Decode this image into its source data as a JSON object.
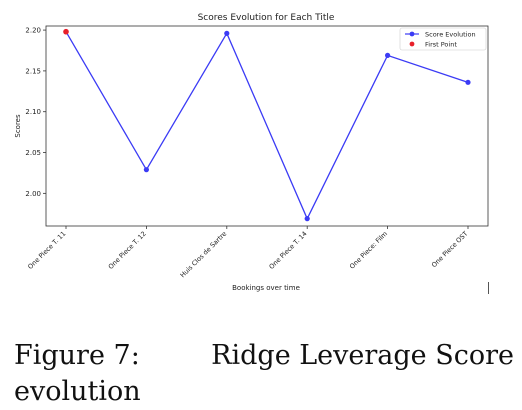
{
  "chart_data": {
    "type": "line",
    "title": "Scores Evolution for Each Title",
    "xlabel": "Bookings over time",
    "ylabel": "Scores",
    "categories": [
      "One Piece T. 11",
      "One Piece T. 12",
      "Huis Clos de Sartre",
      "One Piece T. 14",
      "One Piece: Film",
      "One Piece OST"
    ],
    "series": [
      {
        "name": "Score Evolution",
        "values": [
          2.198,
          2.029,
          2.196,
          1.969,
          2.169,
          2.136
        ],
        "color": "#3b3bf5"
      }
    ],
    "first_point": {
      "name": "First Point",
      "index": 0,
      "value": 2.198,
      "color": "#e8202a"
    },
    "ylim": [
      1.96,
      2.205
    ],
    "yticks": [
      "2.00",
      "2.05",
      "2.10",
      "2.15",
      "2.20"
    ],
    "legend": "top-right",
    "grid": false
  },
  "caption": {
    "label": "Figure 7:",
    "text_line1": "Ridge Leverage Score",
    "text_line2": "evolution"
  }
}
